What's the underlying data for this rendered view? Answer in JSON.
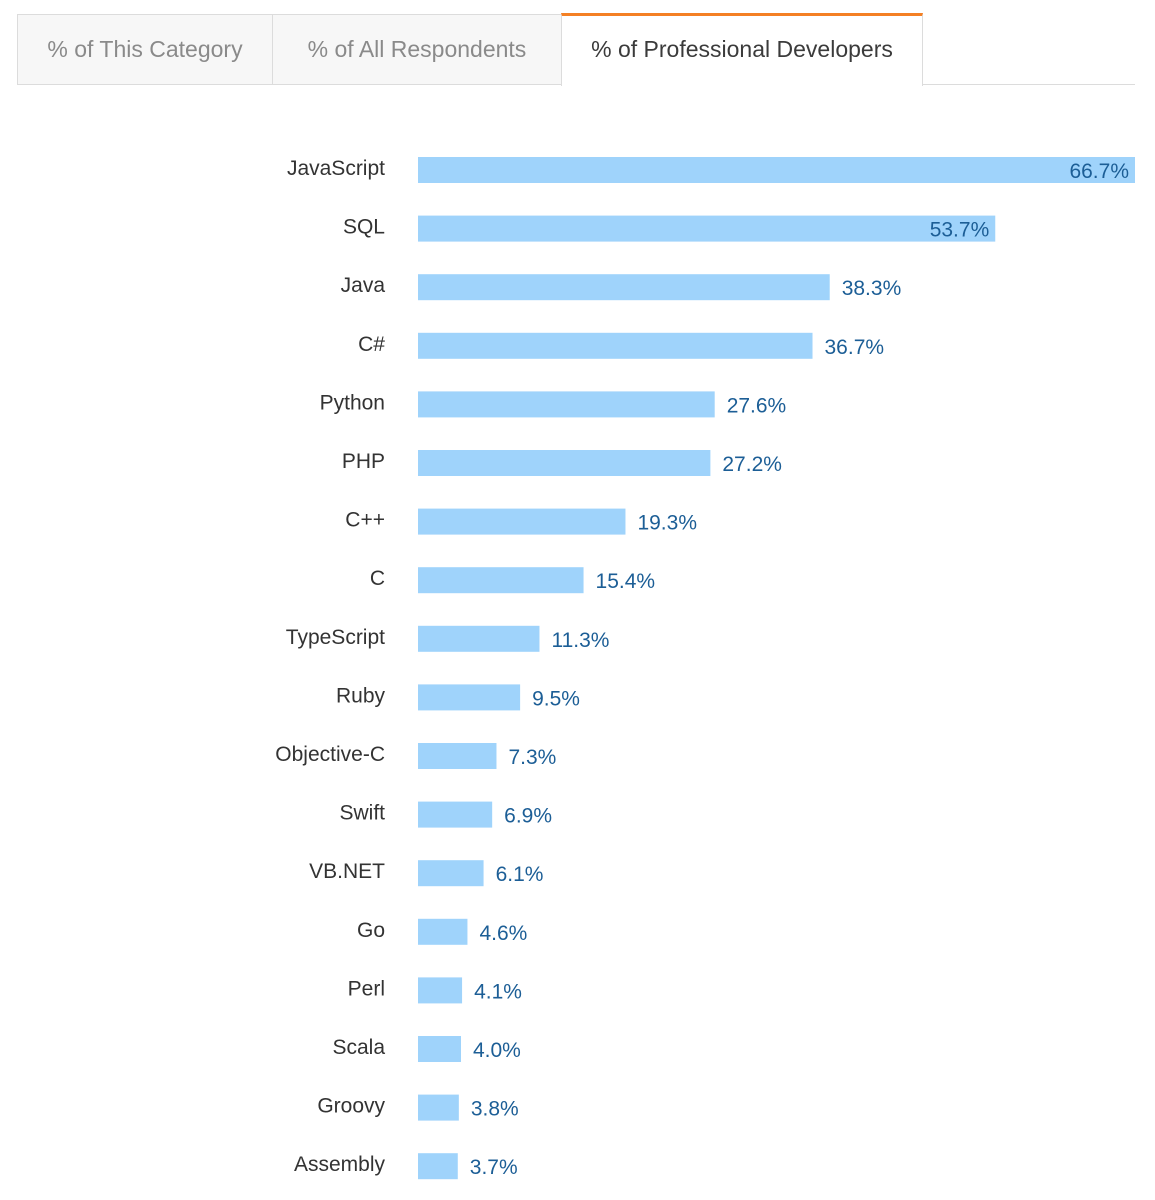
{
  "tabs": [
    {
      "label": "% of This Category",
      "active": false
    },
    {
      "label": "% of All Respondents",
      "active": false
    },
    {
      "label": "% of Professional Developers",
      "active": true
    }
  ],
  "colors": {
    "bar": "#9fd3fb",
    "value_label": "#1c5e96",
    "category_label": "#333333",
    "active_tab_accent": "#f48024"
  },
  "chart_data": {
    "type": "bar",
    "orientation": "horizontal",
    "title": "",
    "xlabel": "",
    "ylabel": "",
    "xlim": [
      0,
      66.7
    ],
    "grid": false,
    "categories": [
      "JavaScript",
      "SQL",
      "Java",
      "C#",
      "Python",
      "PHP",
      "C++",
      "C",
      "TypeScript",
      "Ruby",
      "Objective-C",
      "Swift",
      "VB.NET",
      "Go",
      "Perl",
      "Scala",
      "Groovy",
      "Assembly"
    ],
    "values": [
      66.7,
      53.7,
      38.3,
      36.7,
      27.6,
      27.2,
      19.3,
      15.4,
      11.3,
      9.5,
      7.3,
      6.9,
      6.1,
      4.6,
      4.1,
      4.0,
      3.8,
      3.7
    ],
    "value_labels": [
      "66.7%",
      "53.7%",
      "38.3%",
      "36.7%",
      "27.6%",
      "27.2%",
      "19.3%",
      "15.4%",
      "11.3%",
      "9.5%",
      "7.3%",
      "6.9%",
      "6.1%",
      "4.6%",
      "4.1%",
      "4.0%",
      "3.8%",
      "3.7%"
    ]
  }
}
